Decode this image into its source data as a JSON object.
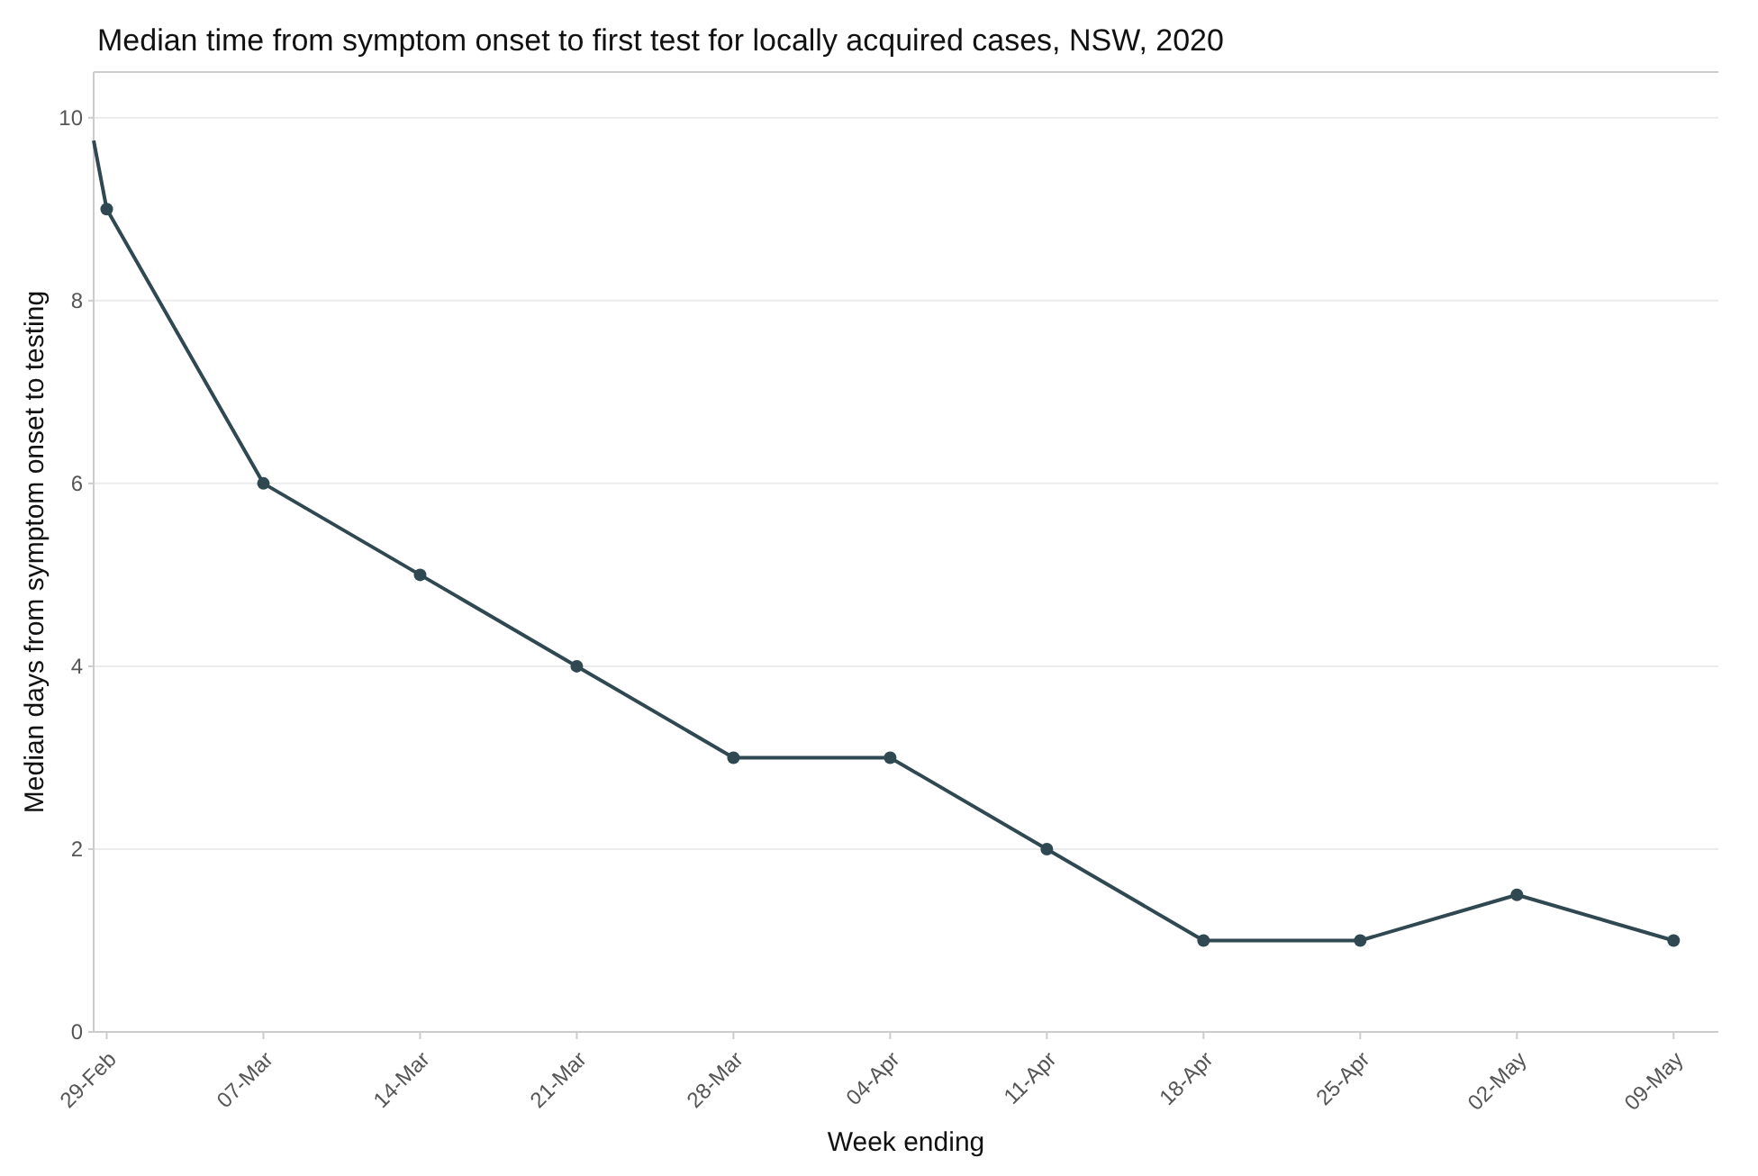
{
  "chart_data": {
    "type": "line",
    "title": "Median time from symptom onset to first test for locally acquired cases, NSW, 2020",
    "xlabel": "Week ending",
    "ylabel": "Median days from symptom onset to testing",
    "x": [
      "2020-02-28T10:00",
      "2020-02-29",
      "2020-03-07",
      "2020-03-14",
      "2020-03-21",
      "2020-03-28",
      "2020-04-04",
      "2020-04-11",
      "2020-04-18",
      "2020-04-25",
      "2020-05-02",
      "2020-05-09"
    ],
    "series": [
      {
        "color": "#2f4852",
        "values": [
          9.75,
          9,
          6,
          5,
          4,
          3,
          3,
          2,
          1,
          1,
          1.5,
          1
        ]
      }
    ],
    "xlim": [
      "2020-02-28T10:00",
      "2020-05-11"
    ],
    "xticks": [
      {
        "value": "2020-02-29",
        "label": "29-Feb"
      },
      {
        "value": "2020-03-07",
        "label": "07-Mar"
      },
      {
        "value": "2020-03-14",
        "label": "14-Mar"
      },
      {
        "value": "2020-03-21",
        "label": "21-Mar"
      },
      {
        "value": "2020-03-28",
        "label": "28-Mar"
      },
      {
        "value": "2020-04-04",
        "label": "04-Apr"
      },
      {
        "value": "2020-04-11",
        "label": "11-Apr"
      },
      {
        "value": "2020-04-18",
        "label": "18-Apr"
      },
      {
        "value": "2020-04-25",
        "label": "25-Apr"
      },
      {
        "value": "2020-05-02",
        "label": "02-May"
      },
      {
        "value": "2020-05-09",
        "label": "09-May"
      }
    ],
    "ylim": [
      0,
      10.5
    ],
    "yticks": [
      0,
      2,
      4,
      6,
      8,
      10
    ],
    "grid": "y",
    "marker": "circle",
    "line_style": "solid"
  }
}
